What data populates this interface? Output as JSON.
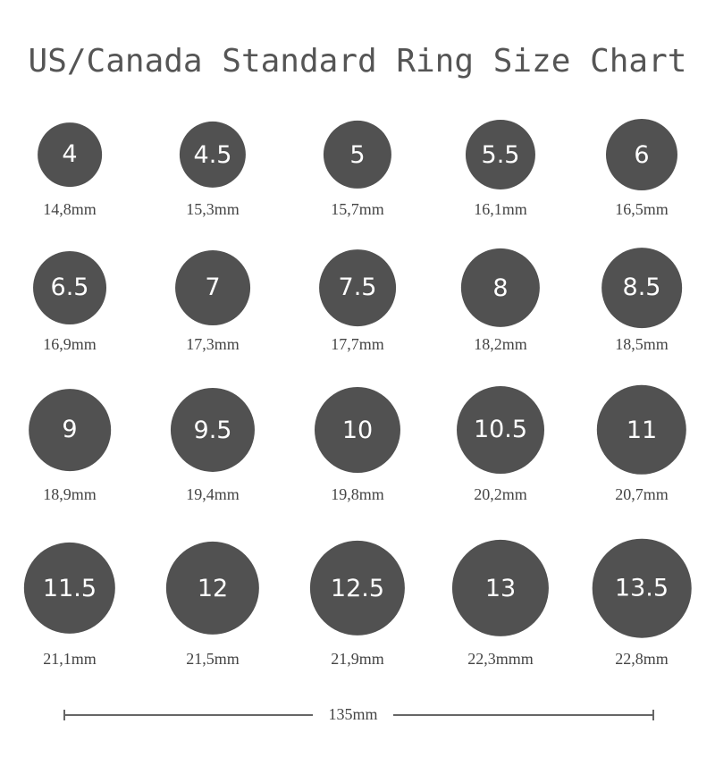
{
  "title": "US/Canada Standard Ring Size Chart",
  "ring_color": "#515151",
  "rings": [
    {
      "size": "4",
      "mm": 14.8,
      "label": "14,8mm"
    },
    {
      "size": "4.5",
      "mm": 15.3,
      "label": "15,3mm"
    },
    {
      "size": "5",
      "mm": 15.7,
      "label": "15,7mm"
    },
    {
      "size": "5.5",
      "mm": 16.1,
      "label": "16,1mm"
    },
    {
      "size": "6",
      "mm": 16.5,
      "label": "16,5mm"
    },
    {
      "size": "6.5",
      "mm": 16.9,
      "label": "16,9mm"
    },
    {
      "size": "7",
      "mm": 17.3,
      "label": "17,3mm"
    },
    {
      "size": "7.5",
      "mm": 17.7,
      "label": "17,7mm"
    },
    {
      "size": "8",
      "mm": 18.2,
      "label": "18,2mm"
    },
    {
      "size": "8.5",
      "mm": 18.5,
      "label": "18,5mm"
    },
    {
      "size": "9",
      "mm": 18.9,
      "label": "18,9mm"
    },
    {
      "size": "9.5",
      "mm": 19.4,
      "label": "19,4mm"
    },
    {
      "size": "10",
      "mm": 19.8,
      "label": "19,8mm"
    },
    {
      "size": "10.5",
      "mm": 20.2,
      "label": "20,2mm"
    },
    {
      "size": "11",
      "mm": 20.7,
      "label": "20,7mm"
    },
    {
      "size": "11.5",
      "mm": 21.1,
      "label": "21,1mm"
    },
    {
      "size": "12",
      "mm": 21.5,
      "label": "21,5mm"
    },
    {
      "size": "12.5",
      "mm": 21.9,
      "label": "21,9mm"
    },
    {
      "size": "13",
      "mm": 22.3,
      "label": "22,3mmm"
    },
    {
      "size": "13.5",
      "mm": 22.8,
      "label": "22,8mm"
    }
  ],
  "scale": {
    "label": "135mm"
  }
}
